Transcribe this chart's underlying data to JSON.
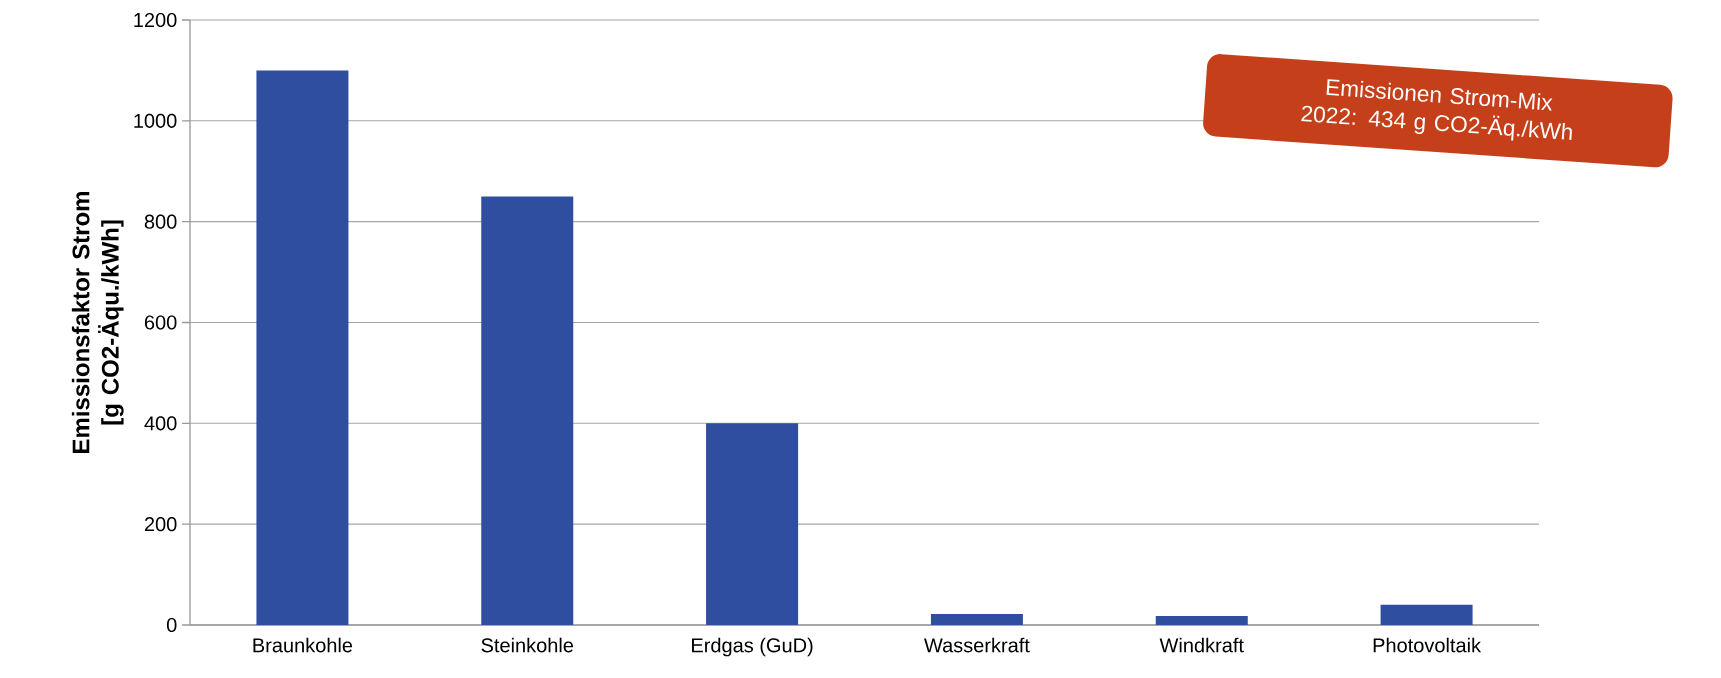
{
  "chart_data": {
    "type": "bar",
    "ylabel": "Emissionsfaktor Strom [g CO2-Äqu./kWh]",
    "categories": [
      "Braunkohle",
      "Steinkohle",
      "Erdgas (GuD)",
      "Wasserkraft",
      "Windkraft",
      "Photovoltaik"
    ],
    "values": [
      1100,
      850,
      400,
      22,
      18,
      40
    ],
    "color": "#2f4ea0",
    "ylim": [
      0,
      1200
    ],
    "yticks": [
      0,
      200,
      400,
      600,
      800,
      1000,
      1200
    ],
    "grid": "y",
    "annotations": [
      "Emissionen Strom-Mix 2022: 434 g CO2-Äq./kWh"
    ]
  }
}
